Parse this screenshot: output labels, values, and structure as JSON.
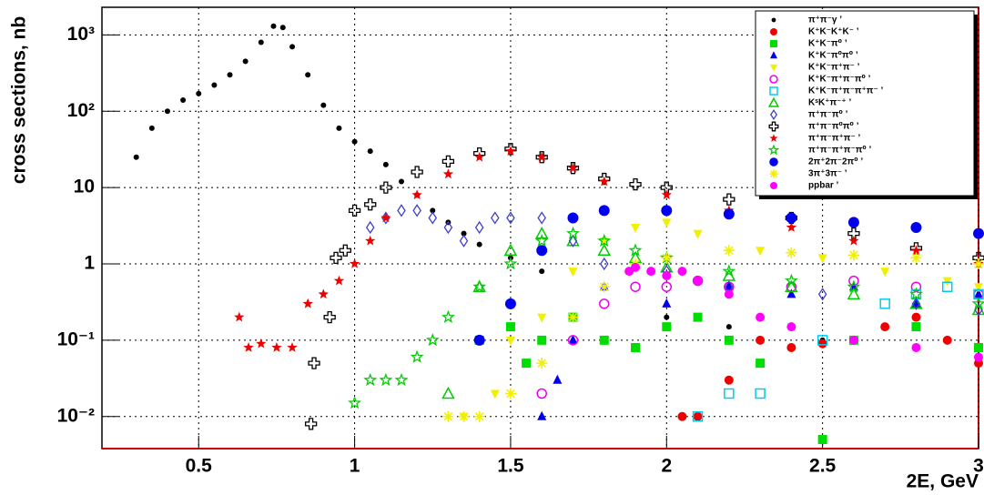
{
  "chart_data": {
    "type": "scatter",
    "ylabel": "cross sections, nb",
    "xlabel": "2E, GeV",
    "xlim": [
      0.19,
      3.0
    ],
    "ylim": [
      0.0038,
      2300
    ],
    "log_y": true,
    "grid": true,
    "legend": "top-right",
    "xticks": [
      0.5,
      1,
      1.5,
      2,
      2.5,
      3
    ],
    "yticks": [
      {
        "value": 0.01,
        "label": "10⁻²"
      },
      {
        "value": 0.1,
        "label": "10⁻¹"
      },
      1,
      10,
      {
        "value": 100,
        "label": "10²"
      },
      {
        "value": 1000,
        "label": "10³"
      }
    ],
    "series": [
      {
        "name": "π⁺π⁻γ ’",
        "color": "#000000",
        "marker": "dot",
        "x": [
          0.3,
          0.35,
          0.4,
          0.45,
          0.5,
          0.55,
          0.6,
          0.65,
          0.7,
          0.74,
          0.77,
          0.8,
          0.85,
          0.9,
          0.95,
          1.0,
          1.05,
          1.1,
          1.15,
          1.2,
          1.25,
          1.3,
          1.35,
          1.4,
          1.5,
          1.6,
          1.8,
          2.0,
          2.2,
          2.5,
          2.8
        ],
        "values": [
          25,
          60,
          100,
          140,
          170,
          220,
          300,
          450,
          800,
          1300,
          1250,
          700,
          300,
          120,
          60,
          40,
          30,
          20,
          12,
          8,
          5,
          3.5,
          2.5,
          1.8,
          1.2,
          0.8,
          0.5,
          0.2,
          0.15,
          0.1,
          0.08
        ]
      },
      {
        "name": "K⁺K⁻K⁺K⁻ ’",
        "color": "#ee0000",
        "marker": "circle",
        "x": [
          2.05,
          2.1,
          2.2,
          2.3,
          2.4,
          2.5,
          2.6,
          2.7,
          2.8,
          2.9,
          3.0
        ],
        "values": [
          0.01,
          0.01,
          0.03,
          0.1,
          0.08,
          0.09,
          0.1,
          0.15,
          0.2,
          0.1,
          0.05
        ]
      },
      {
        "name": "K⁺K⁻π⁰ ’",
        "color": "#00dd00",
        "marker": "square",
        "x": [
          1.4,
          1.5,
          1.55,
          1.6,
          1.7,
          1.8,
          1.9,
          2.0,
          2.1,
          2.2,
          2.3,
          2.5,
          2.6,
          2.8,
          3.0
        ],
        "values": [
          0.1,
          0.15,
          0.05,
          0.1,
          0.2,
          0.1,
          0.08,
          0.15,
          0.2,
          0.1,
          0.05,
          0.005,
          0.1,
          0.15,
          0.08
        ]
      },
      {
        "name": "K⁺K⁻π⁰π⁰ ’",
        "color": "#0000ee",
        "marker": "triangle",
        "x": [
          1.6,
          1.65,
          1.7,
          1.8,
          2.0,
          2.2,
          2.4,
          2.6,
          2.8,
          3.0
        ],
        "values": [
          0.01,
          0.03,
          0.1,
          0.5,
          0.3,
          0.5,
          0.4,
          0.5,
          0.3,
          0.4
        ]
      },
      {
        "name": "K⁺K⁻π⁺π⁻ ’",
        "color": "#f0f000",
        "marker": "triangle-down",
        "x": [
          1.35,
          1.45,
          1.5,
          1.6,
          1.7,
          1.8,
          1.9,
          2.0,
          2.1,
          2.3,
          2.5,
          2.7,
          2.9,
          3.0
        ],
        "values": [
          0.01,
          0.02,
          0.1,
          0.2,
          0.8,
          2,
          3,
          3.5,
          2.5,
          1.5,
          1.2,
          0.8,
          0.6,
          0.5
        ]
      },
      {
        "name": "K⁺K⁻π⁺π⁻π⁰ ’",
        "color": "#ee00ee",
        "marker": "open-circle",
        "x": [
          1.6,
          1.7,
          1.8,
          1.9,
          2.0,
          2.1,
          2.2,
          2.4,
          2.6,
          2.8,
          3.0
        ],
        "values": [
          0.02,
          0.1,
          0.3,
          0.5,
          0.5,
          0.6,
          0.5,
          0.5,
          0.6,
          0.5,
          0.4
        ]
      },
      {
        "name": "K⁺K⁻π⁺π⁻π⁺π⁻ ’",
        "color": "#00ccee",
        "marker": "open-square",
        "x": [
          2.1,
          2.2,
          2.3,
          2.5,
          2.7,
          2.8,
          2.9,
          3.0
        ],
        "values": [
          0.01,
          0.02,
          0.02,
          0.1,
          0.3,
          0.4,
          0.5,
          0.4
        ]
      },
      {
        "name": "KˢK⁺π⁻⁺ ’",
        "color": "#00cc00",
        "marker": "open-triangle",
        "x": [
          1.3,
          1.4,
          1.5,
          1.6,
          1.7,
          1.8,
          1.9,
          2.0,
          2.2,
          2.4,
          2.6,
          2.8,
          3.0
        ],
        "values": [
          0.02,
          0.5,
          1.5,
          2.5,
          2,
          1.5,
          1.2,
          0.9,
          0.7,
          0.5,
          0.4,
          0.3,
          0.25
        ]
      },
      {
        "name": "π⁺π⁻π⁰ ’",
        "color": "#4040cc",
        "marker": "open-diamond",
        "x": [
          1.05,
          1.1,
          1.15,
          1.2,
          1.25,
          1.3,
          1.35,
          1.4,
          1.45,
          1.5,
          1.6,
          1.7,
          1.8,
          2.0,
          2.2,
          2.5,
          2.8,
          3.0
        ],
        "values": [
          3,
          4,
          5,
          5,
          4,
          3,
          2,
          3,
          4,
          4,
          4,
          2,
          1,
          0.8,
          0.5,
          0.4,
          0.3,
          0.25
        ]
      },
      {
        "name": "π⁺π⁻π⁰π⁰ ’",
        "color": "#000000",
        "marker": "open-cross",
        "x": [
          0.86,
          0.87,
          0.92,
          0.94,
          0.97,
          1.0,
          1.05,
          1.1,
          1.2,
          1.3,
          1.4,
          1.5,
          1.6,
          1.7,
          1.8,
          1.9,
          2.0,
          2.2,
          2.4,
          2.6,
          2.8,
          3.0
        ],
        "values": [
          0.008,
          0.05,
          0.2,
          1.2,
          1.5,
          5,
          6,
          10,
          16,
          22,
          28,
          32,
          25,
          18,
          13,
          11,
          10,
          7,
          4,
          2.5,
          1.6,
          1.2
        ]
      },
      {
        "name": "π⁺π⁻π⁺π⁻ ’",
        "color": "#ee0000",
        "marker": "star",
        "x": [
          0.63,
          0.66,
          0.7,
          0.75,
          0.8,
          0.85,
          0.9,
          0.95,
          1.0,
          1.05,
          1.1,
          1.2,
          1.3,
          1.4,
          1.5,
          1.6,
          1.7,
          1.8,
          2.0,
          2.2,
          2.4,
          2.6,
          2.8,
          3.0
        ],
        "values": [
          0.2,
          0.08,
          0.09,
          0.08,
          0.08,
          0.3,
          0.4,
          0.6,
          1,
          2,
          4,
          8,
          15,
          25,
          30,
          25,
          18,
          12,
          8,
          5,
          3,
          2,
          1.5,
          1
        ]
      },
      {
        "name": "π⁺π⁻π⁺π⁻π⁰ ’",
        "color": "#00cc00",
        "marker": "open-star",
        "x": [
          1.0,
          1.05,
          1.1,
          1.15,
          1.2,
          1.25,
          1.3,
          1.4,
          1.5,
          1.6,
          1.7,
          1.8,
          1.9,
          2.0,
          2.2,
          2.4,
          2.6,
          2.8,
          3.0
        ],
        "values": [
          0.015,
          0.03,
          0.03,
          0.03,
          0.06,
          0.1,
          0.2,
          0.5,
          1,
          2,
          2.5,
          2,
          1.5,
          1.2,
          0.8,
          0.6,
          0.5,
          0.4,
          0.3
        ]
      },
      {
        "name": "2π⁺2π⁻2π⁰ ’",
        "color": "#0000ee",
        "marker": "big-circle",
        "x": [
          1.4,
          1.5,
          1.6,
          1.7,
          1.8,
          2.0,
          2.2,
          2.4,
          2.6,
          2.8,
          3.0
        ],
        "values": [
          0.1,
          0.3,
          1.5,
          4,
          5,
          5,
          4.5,
          4,
          3.5,
          3,
          2.5
        ]
      },
      {
        "name": "3π⁺3π⁻ ’",
        "color": "#f0f000",
        "marker": "asterisk",
        "x": [
          1.3,
          1.35,
          1.4,
          1.5,
          1.6,
          1.7,
          1.8,
          1.9,
          2.0,
          2.2,
          2.4,
          2.6,
          2.8,
          3.0
        ],
        "values": [
          0.01,
          0.01,
          0.01,
          0.02,
          0.05,
          0.2,
          0.5,
          1,
          1.2,
          1.5,
          1.4,
          1.3,
          1.2,
          1
        ]
      },
      {
        "name": "ppbar ’",
        "color": "#ff00ff",
        "marker": "circle",
        "x": [
          1.88,
          1.9,
          1.95,
          2.0,
          2.05,
          2.1,
          2.2,
          2.3,
          2.4,
          2.6,
          2.8,
          3.0
        ],
        "values": [
          0.8,
          0.9,
          0.8,
          0.7,
          0.8,
          0.6,
          0.4,
          0.2,
          0.15,
          0.1,
          0.08,
          0.06
        ]
      }
    ]
  }
}
